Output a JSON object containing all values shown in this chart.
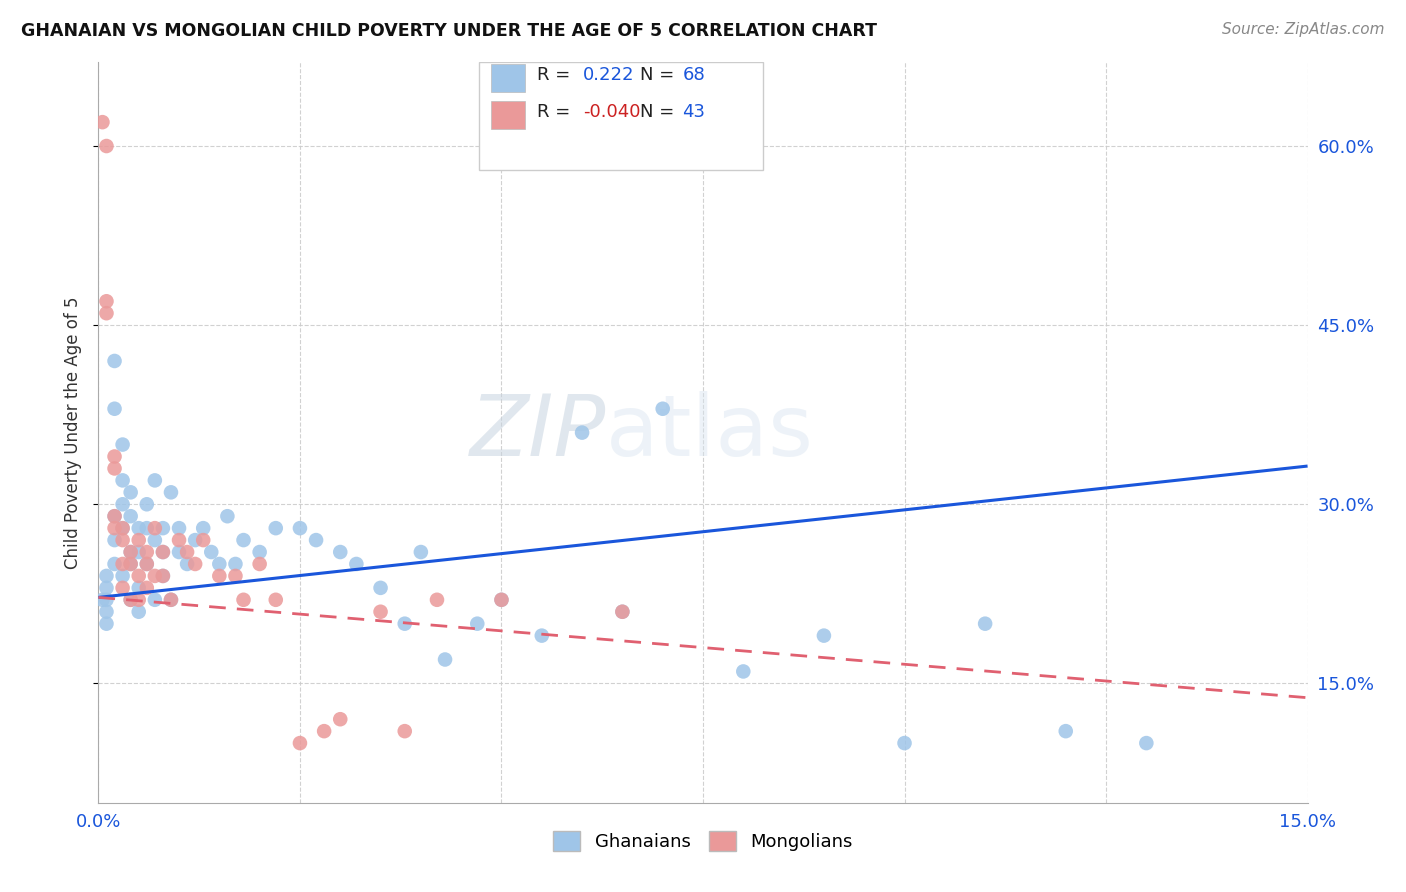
{
  "title": "GHANAIAN VS MONGOLIAN CHILD POVERTY UNDER THE AGE OF 5 CORRELATION CHART",
  "source": "Source: ZipAtlas.com",
  "ylabel": "Child Poverty Under the Age of 5",
  "xlim": [
    0.0,
    0.15
  ],
  "ylim": [
    0.05,
    0.67
  ],
  "xticks": [
    0.0,
    0.025,
    0.05,
    0.075,
    0.1,
    0.125,
    0.15
  ],
  "yticks": [
    0.15,
    0.3,
    0.45,
    0.6
  ],
  "ytick_labels_right": [
    "15.0%",
    "30.0%",
    "45.0%",
    "60.0%"
  ],
  "blue_color": "#9fc5e8",
  "pink_color": "#ea9999",
  "trend_blue_color": "#1a56db",
  "trend_pink_color": "#e06070",
  "R_blue": "0.222",
  "N_blue": "68",
  "R_pink": "-0.040",
  "N_pink": "43",
  "watermark": "ZIPatlas",
  "watermark_color": "#ccd6e8",
  "legend_label_blue": "Ghanaians",
  "legend_label_pink": "Mongolians",
  "blue_trend_y0": 0.222,
  "blue_trend_y1": 0.332,
  "pink_trend_y0": 0.222,
  "pink_trend_y1": 0.138,
  "blue_scatter_x": [
    0.0005,
    0.001,
    0.001,
    0.001,
    0.001,
    0.001,
    0.002,
    0.002,
    0.002,
    0.002,
    0.002,
    0.003,
    0.003,
    0.003,
    0.003,
    0.003,
    0.004,
    0.004,
    0.004,
    0.004,
    0.004,
    0.005,
    0.005,
    0.005,
    0.005,
    0.006,
    0.006,
    0.006,
    0.007,
    0.007,
    0.007,
    0.008,
    0.008,
    0.008,
    0.009,
    0.009,
    0.01,
    0.01,
    0.011,
    0.012,
    0.013,
    0.014,
    0.015,
    0.016,
    0.017,
    0.018,
    0.02,
    0.022,
    0.025,
    0.027,
    0.03,
    0.032,
    0.035,
    0.038,
    0.04,
    0.043,
    0.047,
    0.05,
    0.055,
    0.06,
    0.065,
    0.07,
    0.08,
    0.09,
    0.1,
    0.11,
    0.12,
    0.13
  ],
  "blue_scatter_y": [
    0.22,
    0.24,
    0.21,
    0.23,
    0.2,
    0.22,
    0.38,
    0.42,
    0.27,
    0.29,
    0.25,
    0.32,
    0.35,
    0.28,
    0.24,
    0.3,
    0.29,
    0.25,
    0.22,
    0.31,
    0.26,
    0.28,
    0.23,
    0.26,
    0.21,
    0.3,
    0.28,
    0.25,
    0.32,
    0.27,
    0.22,
    0.28,
    0.26,
    0.24,
    0.31,
    0.22,
    0.28,
    0.26,
    0.25,
    0.27,
    0.28,
    0.26,
    0.25,
    0.29,
    0.25,
    0.27,
    0.26,
    0.28,
    0.28,
    0.27,
    0.26,
    0.25,
    0.23,
    0.2,
    0.26,
    0.17,
    0.2,
    0.22,
    0.19,
    0.36,
    0.21,
    0.38,
    0.16,
    0.19,
    0.1,
    0.2,
    0.11,
    0.1
  ],
  "pink_scatter_x": [
    0.0005,
    0.001,
    0.001,
    0.001,
    0.002,
    0.002,
    0.002,
    0.002,
    0.003,
    0.003,
    0.003,
    0.003,
    0.004,
    0.004,
    0.004,
    0.005,
    0.005,
    0.005,
    0.006,
    0.006,
    0.006,
    0.007,
    0.007,
    0.008,
    0.008,
    0.009,
    0.01,
    0.011,
    0.012,
    0.013,
    0.015,
    0.017,
    0.018,
    0.02,
    0.022,
    0.025,
    0.028,
    0.03,
    0.035,
    0.038,
    0.042,
    0.05,
    0.065
  ],
  "pink_scatter_y": [
    0.62,
    0.6,
    0.47,
    0.46,
    0.34,
    0.33,
    0.29,
    0.28,
    0.28,
    0.27,
    0.25,
    0.23,
    0.26,
    0.25,
    0.22,
    0.27,
    0.24,
    0.22,
    0.26,
    0.25,
    0.23,
    0.28,
    0.24,
    0.26,
    0.24,
    0.22,
    0.27,
    0.26,
    0.25,
    0.27,
    0.24,
    0.24,
    0.22,
    0.25,
    0.22,
    0.1,
    0.11,
    0.12,
    0.21,
    0.11,
    0.22,
    0.22,
    0.21
  ]
}
